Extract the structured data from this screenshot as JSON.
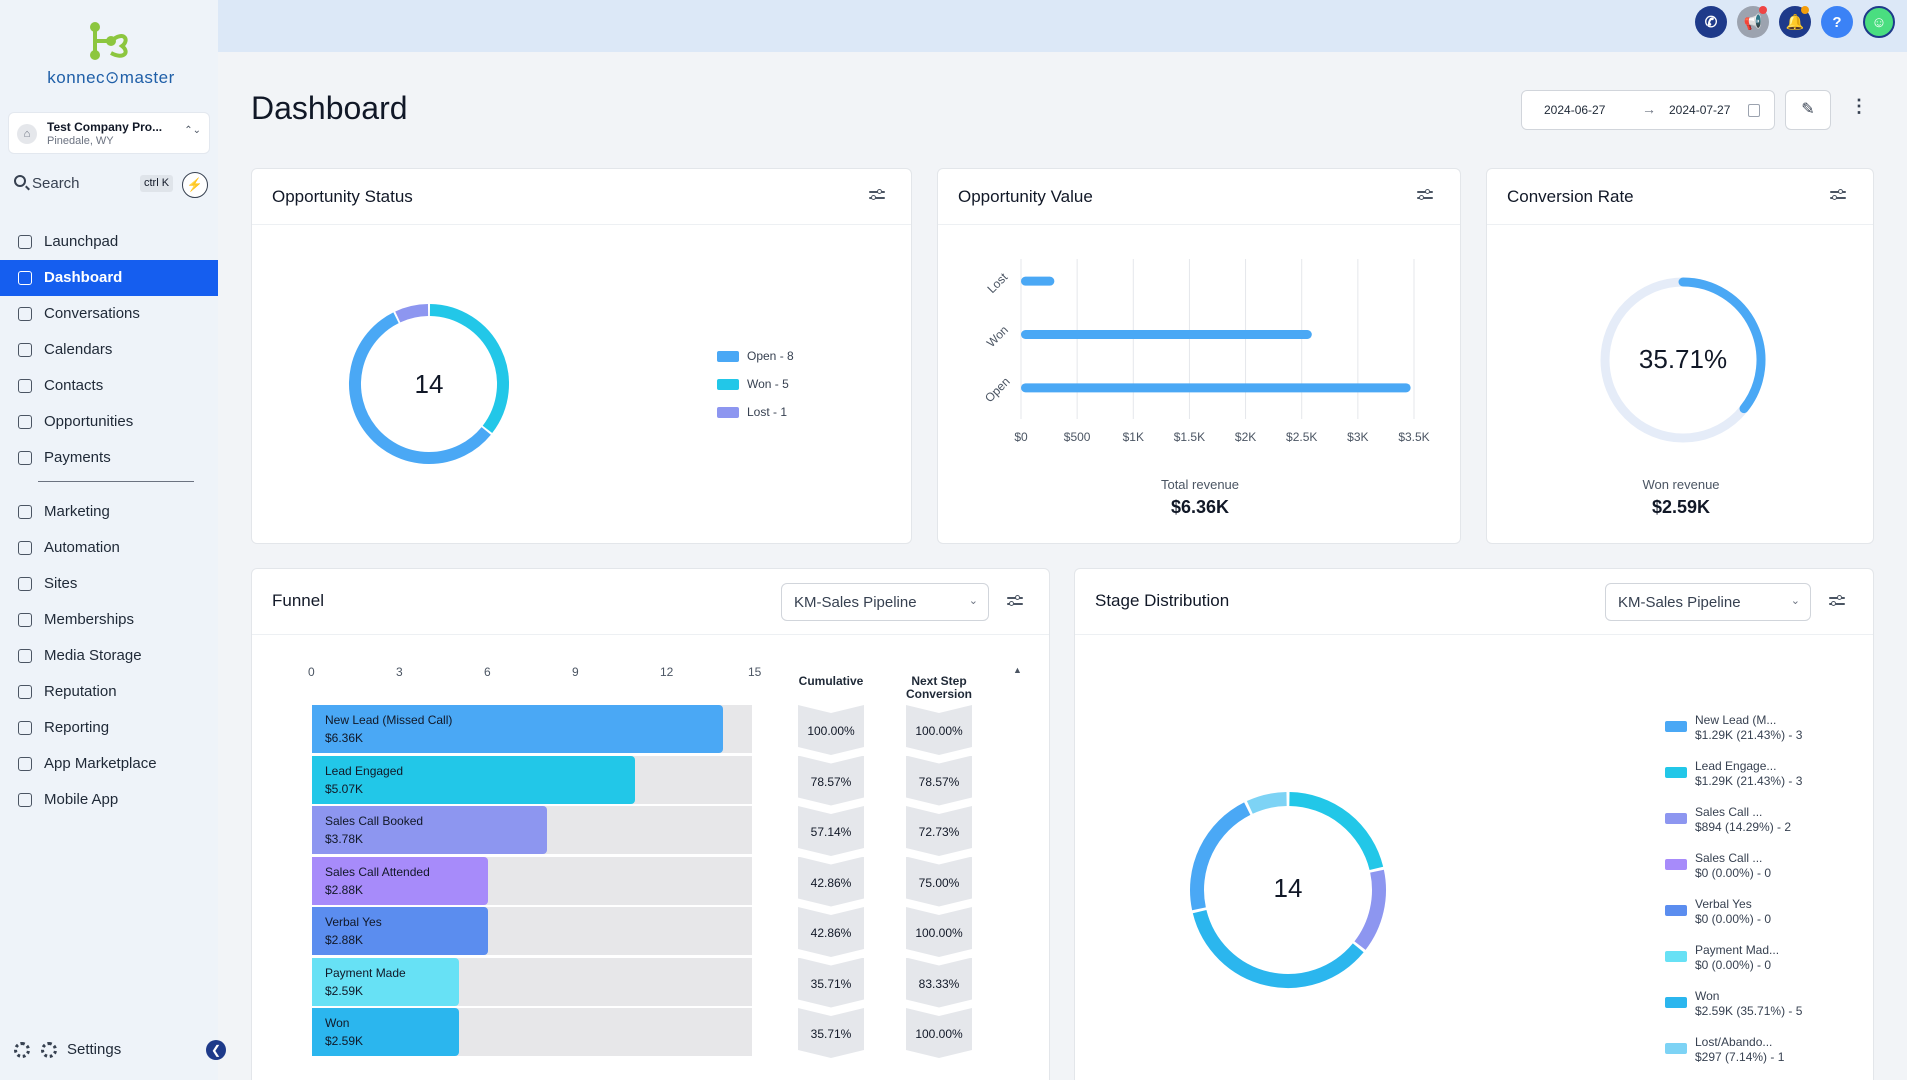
{
  "brand": {
    "logo_text": "konnec⊙master"
  },
  "company": {
    "name": "Test Company Pro...",
    "location": "Pinedale, WY"
  },
  "search": {
    "label": "Search",
    "shortcut": "ctrl K"
  },
  "nav": {
    "primary": [
      {
        "label": "Launchpad",
        "icon": "launchpad-icon"
      },
      {
        "label": "Dashboard",
        "icon": "dashboard-icon",
        "active": true
      },
      {
        "label": "Conversations",
        "icon": "chat-icon"
      },
      {
        "label": "Calendars",
        "icon": "calendar-icon"
      },
      {
        "label": "Contacts",
        "icon": "contacts-icon"
      },
      {
        "label": "Opportunities",
        "icon": "opportunities-icon"
      },
      {
        "label": "Payments",
        "icon": "payments-icon"
      }
    ],
    "secondary": [
      {
        "label": "Marketing",
        "icon": "send-icon"
      },
      {
        "label": "Automation",
        "icon": "automation-icon"
      },
      {
        "label": "Sites",
        "icon": "sites-icon"
      },
      {
        "label": "Memberships",
        "icon": "membership-icon"
      },
      {
        "label": "Media Storage",
        "icon": "image-icon"
      },
      {
        "label": "Reputation",
        "icon": "star-icon"
      },
      {
        "label": "Reporting",
        "icon": "trend-icon"
      },
      {
        "label": "App Marketplace",
        "icon": "grid-icon"
      },
      {
        "label": "Mobile App",
        "icon": "phone-icon"
      }
    ],
    "settings_label": "Settings"
  },
  "header": {
    "title": "Dashboard",
    "date_from": "2024-06-27",
    "date_to": "2024-07-27"
  },
  "colors": {
    "accent": "#155eef",
    "open": "#4aa8f5",
    "won": "#22c7e8",
    "lost": "#8d96f0",
    "track": "#e5ecf8"
  },
  "opportunity_status": {
    "title": "Opportunity Status",
    "total": "14",
    "legend": [
      {
        "label": "Open - 8",
        "color": "#4aa8f5",
        "value": 8
      },
      {
        "label": "Won - 5",
        "color": "#22c7e8",
        "value": 5
      },
      {
        "label": "Lost - 1",
        "color": "#8d96f0",
        "value": 1
      }
    ]
  },
  "opportunity_value": {
    "title": "Opportunity Value",
    "total_label": "Total revenue",
    "total_value": "$6.36K",
    "chart_data": {
      "type": "bar",
      "orientation": "horizontal",
      "categories": [
        "Lost",
        "Won",
        "Open"
      ],
      "values": [
        297,
        2590,
        3470
      ],
      "x_ticks": [
        "$0",
        "$500",
        "$1K",
        "$1.5K",
        "$2K",
        "$2.5K",
        "$3K",
        "$3.5K"
      ],
      "xlim": [
        0,
        3500
      ],
      "grid": true
    }
  },
  "conversion_rate": {
    "title": "Conversion Rate",
    "value_text": "35.71%",
    "value": 0.3571,
    "won_label": "Won revenue",
    "won_value": "$2.59K"
  },
  "funnel": {
    "title": "Funnel",
    "pipeline": "KM-Sales Pipeline",
    "axis_ticks": [
      "0",
      "3",
      "6",
      "9",
      "12",
      "15"
    ],
    "axis_max": 15,
    "cumulative_label": "Cumulative",
    "next_step_label": "Next Step Conversion",
    "stages": [
      {
        "name": "New Lead (Missed Call)",
        "value": "$6.36K",
        "count": 14,
        "color": "#4aa8f5",
        "cumulative": "100.00%",
        "next": "100.00%"
      },
      {
        "name": "Lead Engaged",
        "value": "$5.07K",
        "count": 11,
        "color": "#22c7e8",
        "cumulative": "78.57%",
        "next": "78.57%"
      },
      {
        "name": "Sales Call Booked",
        "value": "$3.78K",
        "count": 8,
        "color": "#8d96f0",
        "cumulative": "57.14%",
        "next": "72.73%"
      },
      {
        "name": "Sales Call Attended",
        "value": "$2.88K",
        "count": 6,
        "color": "#a78bfa",
        "cumulative": "42.86%",
        "next": "75.00%"
      },
      {
        "name": "Verbal Yes",
        "value": "$2.88K",
        "count": 6,
        "color": "#5b8def",
        "cumulative": "42.86%",
        "next": "100.00%"
      },
      {
        "name": "Payment Made",
        "value": "$2.59K",
        "count": 5,
        "color": "#67e1f5",
        "cumulative": "35.71%",
        "next": "83.33%"
      },
      {
        "name": "Won",
        "value": "$2.59K",
        "count": 5,
        "color": "#2bb6ee",
        "cumulative": "35.71%",
        "next": "100.00%"
      }
    ]
  },
  "stage_distribution": {
    "title": "Stage Distribution",
    "pipeline": "KM-Sales Pipeline",
    "total": "14",
    "legend": [
      {
        "l1": "New Lead (M...",
        "l2": "$1.29K (21.43%) - 3",
        "color": "#4aa8f5",
        "count": 3
      },
      {
        "l1": "Lead Engage...",
        "l2": "$1.29K (21.43%) - 3",
        "color": "#22c7e8",
        "count": 3
      },
      {
        "l1": "Sales Call ...",
        "l2": "$894 (14.29%) - 2",
        "color": "#8d96f0",
        "count": 2
      },
      {
        "l1": "Sales Call ...",
        "l2": "$0 (0.00%) - 0",
        "color": "#a78bfa",
        "count": 0
      },
      {
        "l1": "Verbal Yes",
        "l2": "$0 (0.00%) - 0",
        "color": "#5b8def",
        "count": 0
      },
      {
        "l1": "Payment Mad...",
        "l2": "$0 (0.00%) - 0",
        "color": "#67e1f5",
        "count": 0
      },
      {
        "l1": "Won",
        "l2": "$2.59K (35.71%) - 5",
        "color": "#2bb6ee",
        "count": 5
      },
      {
        "l1": "Lost/Abando...",
        "l2": "$297 (7.14%) - 1",
        "color": "#7dd3f5",
        "count": 1
      }
    ]
  }
}
